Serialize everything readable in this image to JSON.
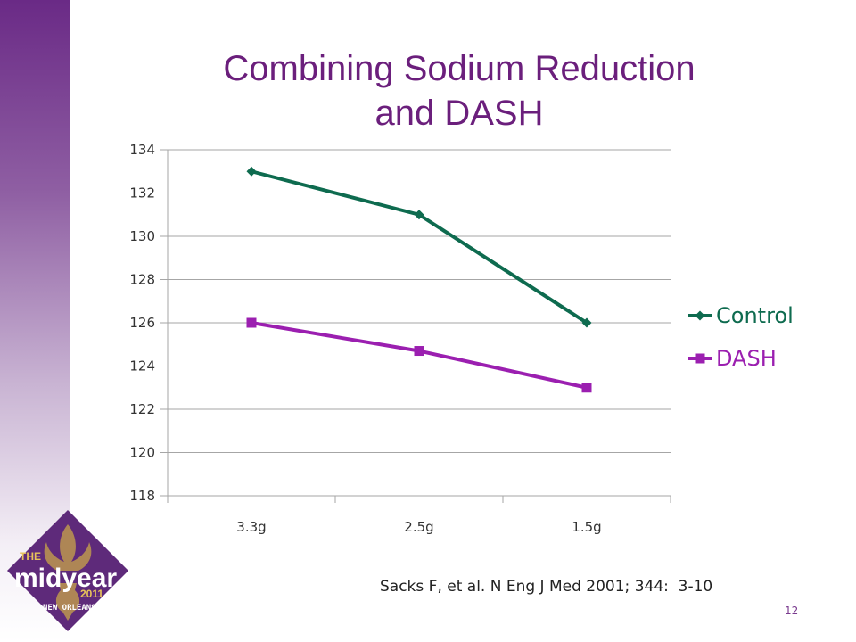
{
  "slide": {
    "title_line1": "Combining Sodium Reduction",
    "title_line2": "and DASH",
    "citation": "Sacks F, et al. N Eng J Med 2001; 344:  3-10",
    "page_number": "12"
  },
  "logo": {
    "the": "THE",
    "mid": "midyear",
    "year": "2011",
    "city": "NEW ORLEANS"
  },
  "colors": {
    "title": "#6b1f7c",
    "control": "#0e6b4f",
    "dash": "#9b1fb0",
    "grid": "#a6a6a6"
  },
  "chart_data": {
    "type": "line",
    "categories": [
      "3.3g",
      "2.5g",
      "1.5g"
    ],
    "series": [
      {
        "name": "Control",
        "values": [
          133,
          131,
          126
        ],
        "marker": "diamond"
      },
      {
        "name": "DASH",
        "values": [
          126,
          124.7,
          123
        ],
        "marker": "square"
      }
    ],
    "ylim": [
      118,
      134
    ],
    "yticks": [
      "118",
      "120",
      "122",
      "124",
      "126",
      "128",
      "130",
      "132",
      "134"
    ],
    "grid": true,
    "legend": "right"
  }
}
